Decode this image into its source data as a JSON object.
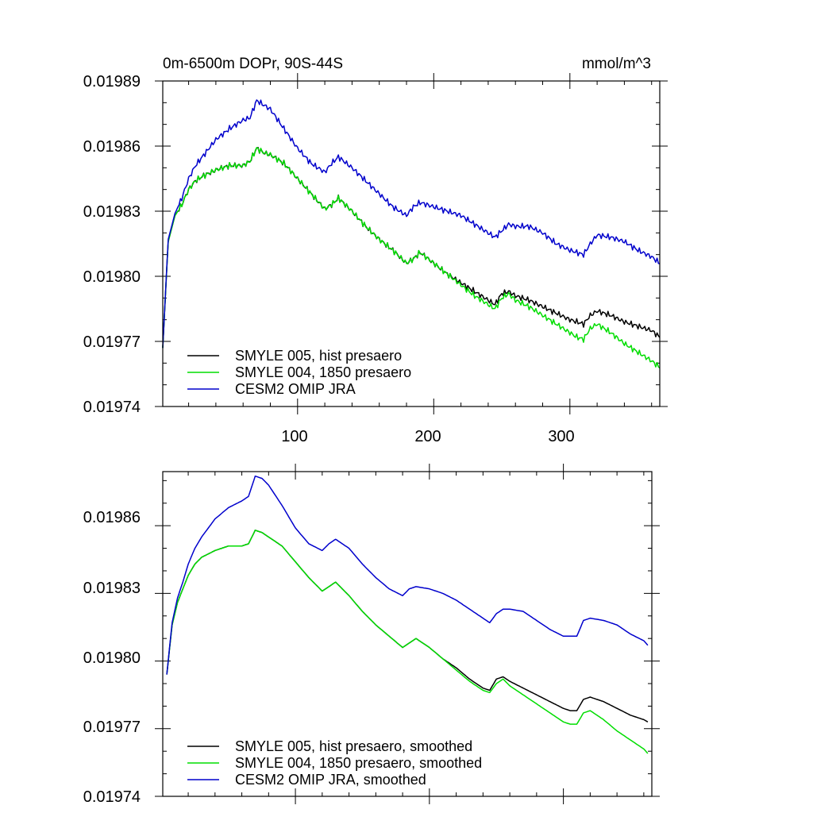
{
  "charts": [
    {
      "title_left": "0m-6500m DOPr, 90S-44S",
      "title_right": "mmol/m^3",
      "y_tick_labels": [
        "0.01989",
        "0.01986",
        "0.01983",
        "0.01980",
        "0.01977",
        "0.01974"
      ],
      "x_tick_labels": [
        "100",
        "200",
        "300"
      ],
      "legend": [
        {
          "label": "SMYLE 005, hist presaero",
          "color": "#000000"
        },
        {
          "label": "SMYLE 004, 1850 presaero",
          "color": "#00dd00"
        },
        {
          "label": "CESM2 OMIP JRA",
          "color": "#0000cc"
        }
      ]
    },
    {
      "y_tick_labels": [
        "0.01986",
        "0.01983",
        "0.01980",
        "0.01977",
        "0.01974"
      ],
      "legend": [
        {
          "label": "SMYLE 005, hist presaero, smoothed",
          "color": "#000000"
        },
        {
          "label": "SMYLE 004, 1850 presaero, smoothed",
          "color": "#00dd00"
        },
        {
          "label": "CESM2 OMIP JRA, smoothed",
          "color": "#0000cc"
        }
      ]
    }
  ],
  "chart_data": [
    {
      "type": "line",
      "title": "0m-6500m DOPr, 90S-44S",
      "units": "mmol/m^3",
      "xlabel": "",
      "ylabel": "",
      "xlim": [
        1,
        366
      ],
      "ylim": [
        0.01974,
        0.01989
      ],
      "yticks": [
        0.01974,
        0.01977,
        0.0198,
        0.01983,
        0.01986,
        0.01989
      ],
      "xticks": [
        100,
        200,
        300
      ],
      "noisy": true,
      "x": [
        1,
        5,
        10,
        15,
        20,
        25,
        30,
        40,
        50,
        60,
        65,
        70,
        75,
        80,
        90,
        100,
        110,
        120,
        125,
        130,
        140,
        150,
        160,
        170,
        180,
        185,
        190,
        200,
        210,
        220,
        230,
        240,
        245,
        250,
        255,
        260,
        270,
        280,
        290,
        300,
        305,
        310,
        315,
        320,
        330,
        340,
        350,
        360,
        366
      ],
      "series": [
        {
          "name": "SMYLE 005, hist presaero",
          "color": "#000000",
          "values": [
            0.019767,
            0.019816,
            0.019828,
            0.019833,
            0.01984,
            0.019844,
            0.019846,
            0.019849,
            0.019851,
            0.019851,
            0.019853,
            0.019859,
            0.019857,
            0.019856,
            0.019852,
            0.019845,
            0.019838,
            0.019831,
            0.019833,
            0.019836,
            0.01983,
            0.019823,
            0.019817,
            0.019812,
            0.019806,
            0.019808,
            0.019811,
            0.019806,
            0.019801,
            0.019797,
            0.019793,
            0.019789,
            0.019787,
            0.019792,
            0.019793,
            0.019791,
            0.019789,
            0.019786,
            0.019783,
            0.01978,
            0.019779,
            0.019778,
            0.019782,
            0.019784,
            0.019782,
            0.019779,
            0.019777,
            0.019775,
            0.019772
          ]
        },
        {
          "name": "SMYLE 004, 1850 presaero",
          "color": "#00dd00",
          "values": [
            0.019767,
            0.019816,
            0.019828,
            0.019833,
            0.01984,
            0.019844,
            0.019846,
            0.019849,
            0.019851,
            0.019851,
            0.019853,
            0.019859,
            0.019857,
            0.019856,
            0.019852,
            0.019845,
            0.019838,
            0.019831,
            0.019833,
            0.019836,
            0.01983,
            0.019823,
            0.019817,
            0.019812,
            0.019806,
            0.019808,
            0.019811,
            0.019806,
            0.019801,
            0.019796,
            0.019791,
            0.019787,
            0.019785,
            0.01979,
            0.019792,
            0.019789,
            0.019786,
            0.019782,
            0.019778,
            0.019774,
            0.019772,
            0.019771,
            0.019776,
            0.019778,
            0.019774,
            0.019769,
            0.019765,
            0.019761,
            0.019758
          ]
        },
        {
          "name": "CESM2 OMIP JRA",
          "color": "#0000cc",
          "values": [
            0.019767,
            0.019817,
            0.019829,
            0.019836,
            0.019845,
            0.019851,
            0.019855,
            0.019863,
            0.019868,
            0.019872,
            0.019873,
            0.019881,
            0.019879,
            0.019877,
            0.019868,
            0.019859,
            0.019852,
            0.019848,
            0.019852,
            0.019855,
            0.01985,
            0.019844,
            0.019838,
            0.019832,
            0.019828,
            0.019832,
            0.019834,
            0.019832,
            0.01983,
            0.019828,
            0.019824,
            0.01982,
            0.019818,
            0.019821,
            0.019824,
            0.019823,
            0.019823,
            0.01982,
            0.019815,
            0.019812,
            0.019811,
            0.01981,
            0.019815,
            0.019819,
            0.019818,
            0.019816,
            0.019812,
            0.019809,
            0.019806
          ]
        }
      ]
    },
    {
      "type": "line",
      "title": "",
      "xlabel": "",
      "ylabel": "",
      "xlim": [
        1,
        366
      ],
      "ylim": [
        0.01974,
        0.019884
      ],
      "yticks": [
        0.01974,
        0.01977,
        0.0198,
        0.01983,
        0.01986
      ],
      "xticks": [
        100,
        200,
        300
      ],
      "noisy": false,
      "x": [
        4,
        8,
        12,
        16,
        20,
        25,
        30,
        40,
        50,
        60,
        65,
        70,
        75,
        80,
        90,
        100,
        110,
        120,
        125,
        130,
        140,
        150,
        160,
        170,
        180,
        185,
        190,
        200,
        210,
        220,
        230,
        240,
        245,
        250,
        255,
        260,
        270,
        280,
        290,
        300,
        305,
        310,
        315,
        320,
        330,
        340,
        350,
        360,
        363
      ],
      "series": [
        {
          "name": "SMYLE 005, hist presaero, smoothed",
          "color": "#000000",
          "values": [
            0.019794,
            0.019816,
            0.019826,
            0.019832,
            0.019838,
            0.019843,
            0.019846,
            0.019849,
            0.019851,
            0.019851,
            0.019852,
            0.019858,
            0.019857,
            0.019855,
            0.019851,
            0.019844,
            0.019837,
            0.019831,
            0.019833,
            0.019835,
            0.019829,
            0.019822,
            0.019816,
            0.019811,
            0.019806,
            0.019808,
            0.01981,
            0.019806,
            0.019801,
            0.019797,
            0.019792,
            0.019788,
            0.019787,
            0.019792,
            0.019793,
            0.019791,
            0.019788,
            0.019785,
            0.019782,
            0.019779,
            0.019778,
            0.019778,
            0.019783,
            0.019784,
            0.019782,
            0.019779,
            0.019776,
            0.019774,
            0.019773
          ]
        },
        {
          "name": "SMYLE 004, 1850 presaero, smoothed",
          "color": "#00dd00",
          "values": [
            0.019794,
            0.019816,
            0.019826,
            0.019832,
            0.019838,
            0.019843,
            0.019846,
            0.019849,
            0.019851,
            0.019851,
            0.019852,
            0.019858,
            0.019857,
            0.019855,
            0.019851,
            0.019844,
            0.019837,
            0.019831,
            0.019833,
            0.019835,
            0.019829,
            0.019822,
            0.019816,
            0.019811,
            0.019806,
            0.019808,
            0.01981,
            0.019806,
            0.019801,
            0.019796,
            0.019791,
            0.019787,
            0.019786,
            0.01979,
            0.019792,
            0.019789,
            0.019785,
            0.019781,
            0.019777,
            0.019773,
            0.019772,
            0.019772,
            0.019777,
            0.019778,
            0.019774,
            0.019769,
            0.019765,
            0.019761,
            0.019759
          ]
        },
        {
          "name": "CESM2 OMIP JRA, smoothed",
          "color": "#0000cc",
          "values": [
            0.019794,
            0.019817,
            0.019828,
            0.019835,
            0.019843,
            0.01985,
            0.019855,
            0.019863,
            0.019868,
            0.019871,
            0.019873,
            0.019882,
            0.019881,
            0.019878,
            0.019869,
            0.019859,
            0.019852,
            0.019849,
            0.019852,
            0.019854,
            0.01985,
            0.019843,
            0.019837,
            0.019832,
            0.019829,
            0.019832,
            0.019833,
            0.019832,
            0.01983,
            0.019827,
            0.019823,
            0.019819,
            0.019817,
            0.019821,
            0.019823,
            0.019823,
            0.019822,
            0.019818,
            0.019814,
            0.019811,
            0.019811,
            0.019811,
            0.019818,
            0.019819,
            0.019818,
            0.019816,
            0.019812,
            0.019809,
            0.019807
          ]
        }
      ]
    }
  ]
}
